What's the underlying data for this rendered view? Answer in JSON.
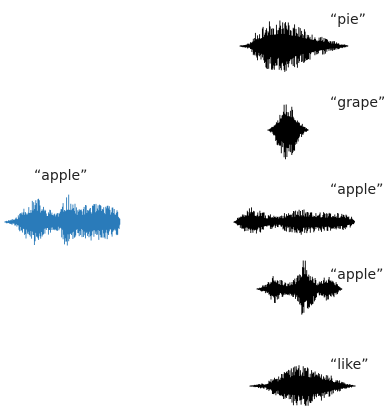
{
  "query": {
    "label": "“apple”",
    "color": "#2a7bba"
  },
  "candidates": [
    {
      "label": "“pie”",
      "color": "#000000"
    },
    {
      "label": "“grape”",
      "color": "#000000"
    },
    {
      "label": "“apple”",
      "color": "#000000"
    },
    {
      "label": "“apple”",
      "color": "#000000"
    },
    {
      "label": "“like”",
      "color": "#000000"
    }
  ]
}
